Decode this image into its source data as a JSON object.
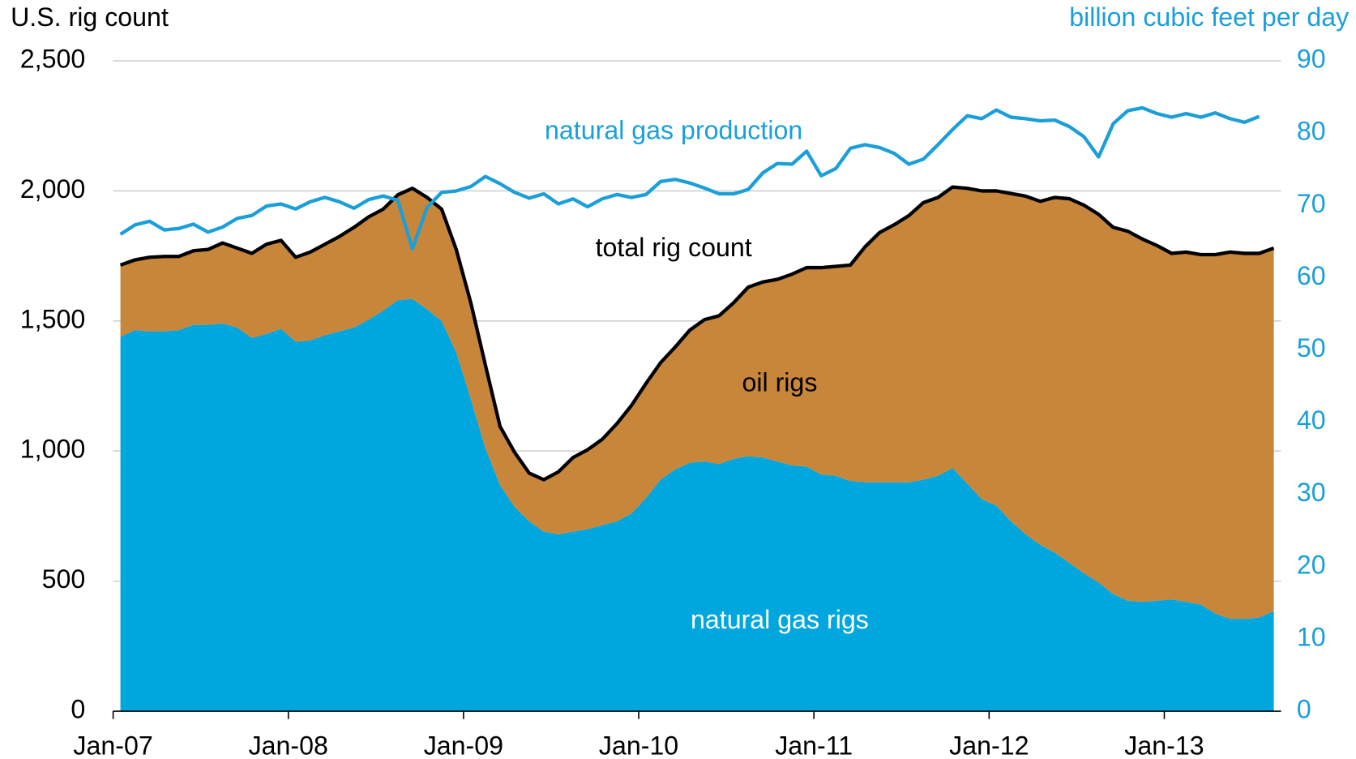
{
  "chart_data": {
    "type": "stacked-area-line",
    "ylabel": "U.S. rig count",
    "y2label": "billion cubic feet per day",
    "categories": [
      "Jan-07",
      null,
      null,
      null,
      null,
      null,
      null,
      null,
      null,
      null,
      null,
      null,
      "Jan-08",
      null,
      null,
      null,
      null,
      null,
      null,
      null,
      null,
      null,
      null,
      null,
      "Jan-09",
      null,
      null,
      null,
      null,
      null,
      null,
      null,
      null,
      null,
      null,
      null,
      "Jan-10",
      null,
      null,
      null,
      null,
      null,
      null,
      null,
      null,
      null,
      null,
      null,
      "Jan-11",
      null,
      null,
      null,
      null,
      null,
      null,
      null,
      null,
      null,
      null,
      null,
      "Jan-12",
      null,
      null,
      null,
      null,
      null,
      null,
      null,
      null,
      null,
      null,
      null,
      "Jan-13",
      null,
      null,
      null,
      null,
      null,
      null,
      null
    ],
    "ylim": [
      0,
      2500
    ],
    "yticks": [
      0,
      500,
      {
        "value": 1000,
        "label": "1,000"
      },
      {
        "value": 1500,
        "label": "1,500"
      },
      {
        "value": 2000,
        "label": "2,000"
      },
      {
        "value": 2500,
        "label": "2,500"
      }
    ],
    "y2lim": [
      0,
      90
    ],
    "y2ticks": [
      0,
      10,
      20,
      30,
      40,
      50,
      60,
      70,
      80,
      90
    ],
    "grid": true,
    "annotations": [
      "natural gas production",
      "total rig count",
      "oil rigs",
      "natural gas rigs"
    ],
    "series": [
      {
        "name": "natural gas rigs",
        "kind": "area",
        "color": "#00a6de",
        "values": [
          1440,
          1465,
          1460,
          1460,
          1465,
          1485,
          1485,
          1490,
          1475,
          1435,
          1450,
          1470,
          1420,
          1425,
          1445,
          1460,
          1475,
          1505,
          1540,
          1580,
          1585,
          1545,
          1500,
          1380,
          1200,
          1010,
          870,
          785,
          730,
          690,
          680,
          690,
          700,
          715,
          730,
          760,
          820,
          890,
          930,
          955,
          960,
          950,
          970,
          980,
          975,
          960,
          945,
          940,
          910,
          905,
          885,
          880,
          880,
          880,
          880,
          890,
          905,
          935,
          875,
          815,
          790,
          730,
          680,
          640,
          610,
          570,
          530,
          495,
          450,
          425,
          420,
          425,
          430,
          420,
          410,
          375,
          355,
          355,
          360,
          385
        ]
      },
      {
        "name": "oil rigs",
        "kind": "area",
        "color": "#c8863a",
        "values": [
          275,
          270,
          285,
          288,
          283,
          285,
          290,
          310,
          305,
          325,
          345,
          340,
          325,
          340,
          350,
          365,
          385,
          395,
          390,
          405,
          425,
          430,
          430,
          395,
          370,
          320,
          225,
          210,
          185,
          200,
          240,
          285,
          305,
          330,
          375,
          415,
          440,
          450,
          470,
          510,
          545,
          570,
          600,
          650,
          675,
          700,
          735,
          765,
          795,
          805,
          830,
          905,
          960,
          990,
          1025,
          1065,
          1070,
          1080,
          1135,
          1185,
          1210,
          1260,
          1300,
          1320,
          1365,
          1400,
          1415,
          1415,
          1410,
          1420,
          1395,
          1365,
          1330,
          1345,
          1345,
          1380,
          1410,
          1405,
          1400,
          1395
        ]
      },
      {
        "name": "total rig count",
        "kind": "line",
        "color": "#000000",
        "values": [
          1715,
          1735,
          1745,
          1748,
          1748,
          1770,
          1775,
          1800,
          1780,
          1760,
          1795,
          1810,
          1745,
          1765,
          1795,
          1825,
          1860,
          1900,
          1930,
          1985,
          2010,
          1975,
          1930,
          1775,
          1570,
          1330,
          1095,
          995,
          915,
          890,
          920,
          975,
          1005,
          1045,
          1105,
          1175,
          1260,
          1340,
          1400,
          1465,
          1505,
          1520,
          1570,
          1630,
          1650,
          1660,
          1680,
          1705,
          1705,
          1710,
          1715,
          1785,
          1840,
          1870,
          1905,
          1955,
          1975,
          2015,
          2010,
          2000,
          2000,
          1990,
          1980,
          1960,
          1975,
          1970,
          1945,
          1910,
          1860,
          1845,
          1815,
          1790,
          1760,
          1765,
          1755,
          1755,
          1765,
          1760,
          1760,
          1780
        ]
      },
      {
        "name": "natural gas production",
        "kind": "line",
        "axis": "y2",
        "color": "#1a9fd9",
        "values": [
          66.0,
          67.3,
          67.8,
          66.6,
          66.8,
          67.4,
          66.3,
          67.0,
          68.2,
          68.6,
          69.9,
          70.2,
          69.5,
          70.5,
          71.1,
          70.5,
          69.6,
          70.8,
          71.3,
          70.7,
          64.0,
          69.7,
          71.8,
          72.0,
          72.6,
          74.0,
          73.0,
          71.8,
          71.0,
          71.6,
          70.2,
          70.9,
          69.8,
          70.9,
          71.5,
          71.1,
          71.5,
          73.3,
          73.6,
          73.1,
          72.4,
          71.6,
          71.6,
          72.2,
          74.5,
          75.8,
          75.7,
          77.5,
          74.1,
          75.1,
          77.9,
          78.4,
          78.0,
          77.2,
          75.7,
          76.4,
          78.4,
          80.5,
          82.4,
          82.0,
          83.2,
          82.2,
          82.0,
          81.7,
          81.8,
          80.9,
          79.5,
          76.7,
          81.3,
          83.1,
          83.5,
          82.7,
          82.2,
          82.7,
          82.2,
          82.8,
          82.0,
          81.5,
          82.3,
          null
        ]
      }
    ]
  }
}
